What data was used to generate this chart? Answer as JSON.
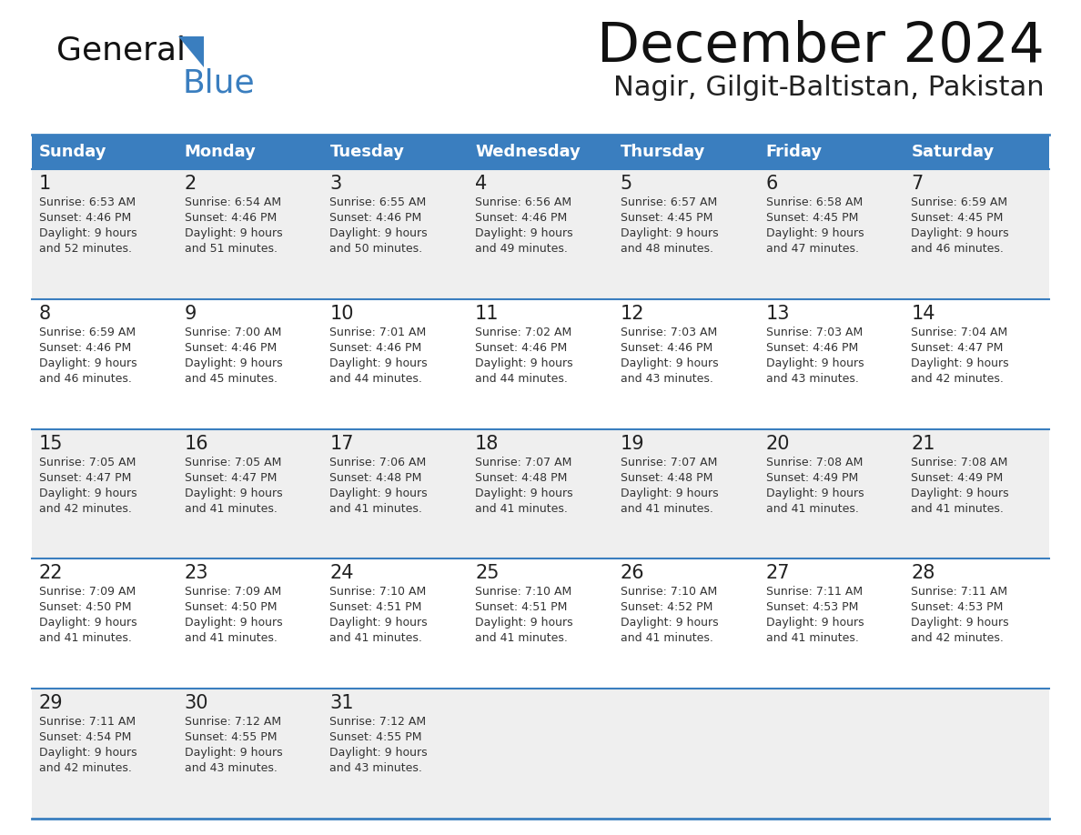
{
  "title": "December 2024",
  "subtitle": "Nagir, Gilgit-Baltistan, Pakistan",
  "header_bg_color": "#3a7ebf",
  "header_text_color": "#ffffff",
  "row_bg_even": "#efefef",
  "row_bg_odd": "#ffffff",
  "day_number_color": "#222222",
  "cell_text_color": "#333333",
  "border_color": "#3a7ebf",
  "days_of_week": [
    "Sunday",
    "Monday",
    "Tuesday",
    "Wednesday",
    "Thursday",
    "Friday",
    "Saturday"
  ],
  "weeks": [
    [
      {
        "day": 1,
        "sunrise": "6:53 AM",
        "sunset": "4:46 PM",
        "daylight_l1": "9 hours",
        "daylight_l2": "and 52 minutes."
      },
      {
        "day": 2,
        "sunrise": "6:54 AM",
        "sunset": "4:46 PM",
        "daylight_l1": "9 hours",
        "daylight_l2": "and 51 minutes."
      },
      {
        "day": 3,
        "sunrise": "6:55 AM",
        "sunset": "4:46 PM",
        "daylight_l1": "9 hours",
        "daylight_l2": "and 50 minutes."
      },
      {
        "day": 4,
        "sunrise": "6:56 AM",
        "sunset": "4:46 PM",
        "daylight_l1": "9 hours",
        "daylight_l2": "and 49 minutes."
      },
      {
        "day": 5,
        "sunrise": "6:57 AM",
        "sunset": "4:45 PM",
        "daylight_l1": "9 hours",
        "daylight_l2": "and 48 minutes."
      },
      {
        "day": 6,
        "sunrise": "6:58 AM",
        "sunset": "4:45 PM",
        "daylight_l1": "9 hours",
        "daylight_l2": "and 47 minutes."
      },
      {
        "day": 7,
        "sunrise": "6:59 AM",
        "sunset": "4:45 PM",
        "daylight_l1": "9 hours",
        "daylight_l2": "and 46 minutes."
      }
    ],
    [
      {
        "day": 8,
        "sunrise": "6:59 AM",
        "sunset": "4:46 PM",
        "daylight_l1": "9 hours",
        "daylight_l2": "and 46 minutes."
      },
      {
        "day": 9,
        "sunrise": "7:00 AM",
        "sunset": "4:46 PM",
        "daylight_l1": "9 hours",
        "daylight_l2": "and 45 minutes."
      },
      {
        "day": 10,
        "sunrise": "7:01 AM",
        "sunset": "4:46 PM",
        "daylight_l1": "9 hours",
        "daylight_l2": "and 44 minutes."
      },
      {
        "day": 11,
        "sunrise": "7:02 AM",
        "sunset": "4:46 PM",
        "daylight_l1": "9 hours",
        "daylight_l2": "and 44 minutes."
      },
      {
        "day": 12,
        "sunrise": "7:03 AM",
        "sunset": "4:46 PM",
        "daylight_l1": "9 hours",
        "daylight_l2": "and 43 minutes."
      },
      {
        "day": 13,
        "sunrise": "7:03 AM",
        "sunset": "4:46 PM",
        "daylight_l1": "9 hours",
        "daylight_l2": "and 43 minutes."
      },
      {
        "day": 14,
        "sunrise": "7:04 AM",
        "sunset": "4:47 PM",
        "daylight_l1": "9 hours",
        "daylight_l2": "and 42 minutes."
      }
    ],
    [
      {
        "day": 15,
        "sunrise": "7:05 AM",
        "sunset": "4:47 PM",
        "daylight_l1": "9 hours",
        "daylight_l2": "and 42 minutes."
      },
      {
        "day": 16,
        "sunrise": "7:05 AM",
        "sunset": "4:47 PM",
        "daylight_l1": "9 hours",
        "daylight_l2": "and 41 minutes."
      },
      {
        "day": 17,
        "sunrise": "7:06 AM",
        "sunset": "4:48 PM",
        "daylight_l1": "9 hours",
        "daylight_l2": "and 41 minutes."
      },
      {
        "day": 18,
        "sunrise": "7:07 AM",
        "sunset": "4:48 PM",
        "daylight_l1": "9 hours",
        "daylight_l2": "and 41 minutes."
      },
      {
        "day": 19,
        "sunrise": "7:07 AM",
        "sunset": "4:48 PM",
        "daylight_l1": "9 hours",
        "daylight_l2": "and 41 minutes."
      },
      {
        "day": 20,
        "sunrise": "7:08 AM",
        "sunset": "4:49 PM",
        "daylight_l1": "9 hours",
        "daylight_l2": "and 41 minutes."
      },
      {
        "day": 21,
        "sunrise": "7:08 AM",
        "sunset": "4:49 PM",
        "daylight_l1": "9 hours",
        "daylight_l2": "and 41 minutes."
      }
    ],
    [
      {
        "day": 22,
        "sunrise": "7:09 AM",
        "sunset": "4:50 PM",
        "daylight_l1": "9 hours",
        "daylight_l2": "and 41 minutes."
      },
      {
        "day": 23,
        "sunrise": "7:09 AM",
        "sunset": "4:50 PM",
        "daylight_l1": "9 hours",
        "daylight_l2": "and 41 minutes."
      },
      {
        "day": 24,
        "sunrise": "7:10 AM",
        "sunset": "4:51 PM",
        "daylight_l1": "9 hours",
        "daylight_l2": "and 41 minutes."
      },
      {
        "day": 25,
        "sunrise": "7:10 AM",
        "sunset": "4:51 PM",
        "daylight_l1": "9 hours",
        "daylight_l2": "and 41 minutes."
      },
      {
        "day": 26,
        "sunrise": "7:10 AM",
        "sunset": "4:52 PM",
        "daylight_l1": "9 hours",
        "daylight_l2": "and 41 minutes."
      },
      {
        "day": 27,
        "sunrise": "7:11 AM",
        "sunset": "4:53 PM",
        "daylight_l1": "9 hours",
        "daylight_l2": "and 41 minutes."
      },
      {
        "day": 28,
        "sunrise": "7:11 AM",
        "sunset": "4:53 PM",
        "daylight_l1": "9 hours",
        "daylight_l2": "and 42 minutes."
      }
    ],
    [
      {
        "day": 29,
        "sunrise": "7:11 AM",
        "sunset": "4:54 PM",
        "daylight_l1": "9 hours",
        "daylight_l2": "and 42 minutes."
      },
      {
        "day": 30,
        "sunrise": "7:12 AM",
        "sunset": "4:55 PM",
        "daylight_l1": "9 hours",
        "daylight_l2": "and 43 minutes."
      },
      {
        "day": 31,
        "sunrise": "7:12 AM",
        "sunset": "4:55 PM",
        "daylight_l1": "9 hours",
        "daylight_l2": "and 43 minutes."
      },
      null,
      null,
      null,
      null
    ]
  ],
  "bg_color": "#ffffff",
  "fig_width": 11.88,
  "fig_height": 9.18,
  "dpi": 100
}
